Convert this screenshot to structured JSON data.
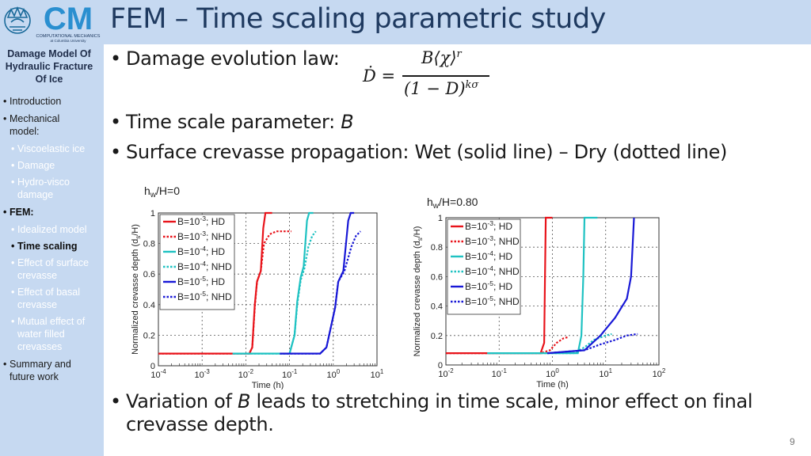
{
  "logo": {
    "text": "CM",
    "sub1": "COMPUTATIONAL MECHANICS",
    "sub2": "at Columbia University"
  },
  "slide": {
    "title": "FEM – Time scaling parametric study",
    "number": "9"
  },
  "sidebar": {
    "title_lines": [
      "Damage Model Of",
      "Hydraulic Fracture",
      "Of Ice"
    ],
    "items": [
      {
        "label": "Introduction",
        "level": 1
      },
      {
        "label": "Mechanical",
        "level": 1
      },
      {
        "label": "model:",
        "level": 1,
        "cont": true
      },
      {
        "label": "Viscoelastic ice",
        "level": 2
      },
      {
        "label": "Damage",
        "level": 2
      },
      {
        "label": "Hydro-visco",
        "level": 2
      },
      {
        "label": "damage",
        "level": 2,
        "cont": true
      },
      {
        "label": "FEM:",
        "level": 1,
        "bold": true
      },
      {
        "label": "Idealized model",
        "level": 2
      },
      {
        "label": "Time scaling",
        "level": 2,
        "bold": true
      },
      {
        "label": "Effect of surface",
        "level": 2
      },
      {
        "label": "crevasse",
        "level": 2,
        "cont": true
      },
      {
        "label": "Effect of basal",
        "level": 2
      },
      {
        "label": "crevasse",
        "level": 2,
        "cont": true
      },
      {
        "label": "Mutual effect of",
        "level": 2
      },
      {
        "label": "water filled",
        "level": 2,
        "cont": true
      },
      {
        "label": "crevasses",
        "level": 2,
        "cont": true
      },
      {
        "label": "Summary and",
        "level": 1
      },
      {
        "label": "future work",
        "level": 1,
        "cont": true
      }
    ]
  },
  "bullets": {
    "b1": "Damage evolution law:",
    "b2_pre": "Time scale parameter: ",
    "b2_var": "B",
    "b3": "Surface crevasse propagation: Wet (solid line) – Dry (dotted line)",
    "b4_pre": "Variation of ",
    "b4_var": "B",
    "b4_post": " leads to stretching in time scale, minor effect on final",
    "b4_line2": "crevasse depth."
  },
  "equation": {
    "lhs": "Ḋ =",
    "num": "B⟨χ⟩",
    "num_sup": "r",
    "den": "(1 − D)",
    "den_sup": "kσ"
  },
  "chart_data": [
    {
      "type": "line",
      "title": "hw/H=0",
      "xlabel": "Time (h)",
      "ylabel": "Normalized crevasse depth (ds/H)",
      "xscale": "log",
      "xlim": [
        0.0001,
        10
      ],
      "ylim": [
        0,
        1
      ],
      "xticks": [
        "10^-4",
        "10^-3",
        "10^-2",
        "10^-1",
        "10^0",
        "10^1"
      ],
      "yticks": [
        "0",
        "0.2",
        "0.4",
        "0.6",
        "0.8",
        "1"
      ],
      "grid": true,
      "legend": "top-left",
      "series": [
        {
          "name": "B=10^-3; HD",
          "color": "#e8141b",
          "dash": false,
          "points": [
            [
              0.0001,
              0.08
            ],
            [
              0.012,
              0.08
            ],
            [
              0.014,
              0.12
            ],
            [
              0.016,
              0.4
            ],
            [
              0.018,
              0.55
            ],
            [
              0.022,
              0.62
            ],
            [
              0.025,
              0.9
            ],
            [
              0.028,
              1
            ],
            [
              0.04,
              1
            ]
          ]
        },
        {
          "name": "B=10^-3; NHD",
          "color": "#e8141b",
          "dash": true,
          "points": [
            [
              0.0001,
              0.08
            ],
            [
              0.012,
              0.08
            ],
            [
              0.014,
              0.12
            ],
            [
              0.016,
              0.38
            ],
            [
              0.018,
              0.55
            ],
            [
              0.022,
              0.62
            ],
            [
              0.026,
              0.8
            ],
            [
              0.035,
              0.86
            ],
            [
              0.05,
              0.88
            ],
            [
              0.11,
              0.88
            ]
          ]
        },
        {
          "name": "B=10^-4; HD",
          "color": "#1fc2c2",
          "dash": false,
          "points": [
            [
              0.005,
              0.08
            ],
            [
              0.1,
              0.08
            ],
            [
              0.13,
              0.2
            ],
            [
              0.15,
              0.42
            ],
            [
              0.18,
              0.58
            ],
            [
              0.21,
              0.65
            ],
            [
              0.25,
              0.95
            ],
            [
              0.28,
              1
            ],
            [
              0.35,
              1
            ]
          ]
        },
        {
          "name": "B=10^-4; NHD",
          "color": "#1fc2c2",
          "dash": true,
          "points": [
            [
              0.005,
              0.08
            ],
            [
              0.1,
              0.08
            ],
            [
              0.13,
              0.2
            ],
            [
              0.15,
              0.4
            ],
            [
              0.18,
              0.56
            ],
            [
              0.22,
              0.64
            ],
            [
              0.27,
              0.78
            ],
            [
              0.33,
              0.85
            ],
            [
              0.4,
              0.88
            ]
          ]
        },
        {
          "name": "B=10^-5; HD",
          "color": "#1818d6",
          "dash": false,
          "points": [
            [
              0.06,
              0.08
            ],
            [
              0.5,
              0.08
            ],
            [
              0.7,
              0.12
            ],
            [
              1.1,
              0.38
            ],
            [
              1.3,
              0.55
            ],
            [
              1.7,
              0.62
            ],
            [
              2.2,
              0.95
            ],
            [
              2.5,
              1
            ],
            [
              3,
              1
            ]
          ]
        },
        {
          "name": "B=10^-5; NHD",
          "color": "#1818d6",
          "dash": true,
          "points": [
            [
              0.06,
              0.08
            ],
            [
              0.5,
              0.08
            ],
            [
              0.7,
              0.12
            ],
            [
              1.1,
              0.38
            ],
            [
              1.3,
              0.55
            ],
            [
              1.8,
              0.62
            ],
            [
              2.6,
              0.78
            ],
            [
              3.3,
              0.85
            ],
            [
              4.2,
              0.88
            ]
          ]
        }
      ]
    },
    {
      "type": "line",
      "title": "hw/H=0.80",
      "xlabel": "Time (h)",
      "ylabel": "Normalized crevasse depth (ds/H)",
      "xscale": "log",
      "xlim": [
        0.01,
        100
      ],
      "ylim": [
        0,
        1
      ],
      "xticks": [
        "10^-2",
        "10^-1",
        "10^0",
        "10^1",
        "10^2"
      ],
      "yticks": [
        "0",
        "0.2",
        "0.4",
        "0.6",
        "0.8",
        "1"
      ],
      "grid": true,
      "legend": "top-left",
      "series": [
        {
          "name": "B=10^-3; HD",
          "color": "#e8141b",
          "dash": false,
          "points": [
            [
              0.01,
              0.08
            ],
            [
              0.4,
              0.08
            ],
            [
              0.6,
              0.08
            ],
            [
              0.7,
              0.15
            ],
            [
              0.72,
              0.5
            ],
            [
              0.75,
              1
            ],
            [
              1,
              1
            ]
          ]
        },
        {
          "name": "B=10^-3; NHD",
          "color": "#e8141b",
          "dash": true,
          "points": [
            [
              0.01,
              0.08
            ],
            [
              0.6,
              0.08
            ],
            [
              0.9,
              0.1
            ],
            [
              1.2,
              0.15
            ],
            [
              1.6,
              0.18
            ],
            [
              2.0,
              0.19
            ]
          ]
        },
        {
          "name": "B=10^-4; HD",
          "color": "#1fc2c2",
          "dash": false,
          "points": [
            [
              0.06,
              0.08
            ],
            [
              3,
              0.08
            ],
            [
              3.5,
              0.2
            ],
            [
              3.8,
              0.6
            ],
            [
              4,
              1
            ],
            [
              7,
              1
            ]
          ]
        },
        {
          "name": "B=10^-4; NHD",
          "color": "#1fc2c2",
          "dash": true,
          "points": [
            [
              0.06,
              0.08
            ],
            [
              2.5,
              0.08
            ],
            [
              4,
              0.12
            ],
            [
              6,
              0.17
            ],
            [
              10,
              0.2
            ],
            [
              13,
              0.21
            ]
          ]
        },
        {
          "name": "B=10^-5; HD",
          "color": "#1818d6",
          "dash": false,
          "points": [
            [
              0.8,
              0.08
            ],
            [
              4,
              0.1
            ],
            [
              8,
              0.2
            ],
            [
              15,
              0.32
            ],
            [
              25,
              0.45
            ],
            [
              30,
              0.6
            ],
            [
              32,
              0.8
            ],
            [
              34,
              1
            ]
          ]
        },
        {
          "name": "B=10^-5; NHD",
          "color": "#1818d6",
          "dash": true,
          "points": [
            [
              0.8,
              0.08
            ],
            [
              4,
              0.1
            ],
            [
              8,
              0.14
            ],
            [
              15,
              0.17
            ],
            [
              25,
              0.2
            ],
            [
              40,
              0.21
            ]
          ]
        }
      ]
    }
  ]
}
